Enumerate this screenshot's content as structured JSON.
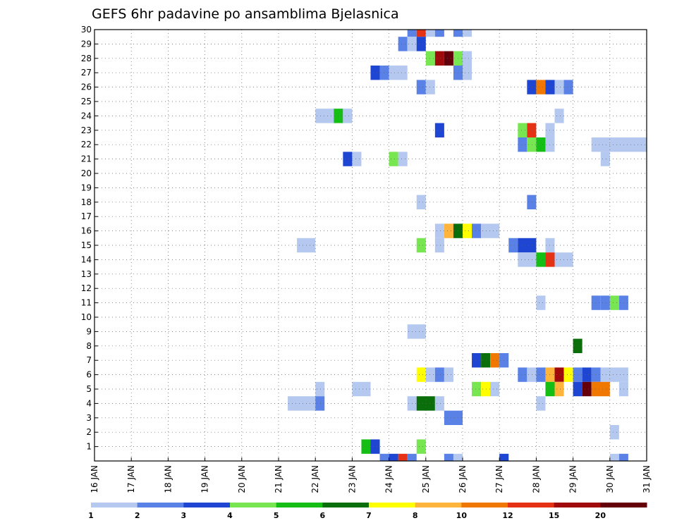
{
  "chart_data": {
    "type": "heatmap",
    "title": "GEFS 6hr padavine po ansamblima Bjelasnica",
    "x_tick_labels": [
      "16 JAN",
      "17 JAN",
      "18 JAN",
      "19 JAN",
      "20 JAN",
      "21 JAN",
      "22 JAN",
      "23 JAN",
      "24 JAN",
      "25 JAN",
      "26 JAN",
      "27 JAN",
      "28 JAN",
      "29 JAN",
      "30 JAN",
      "31 JAN"
    ],
    "x_range_days": [
      16,
      31
    ],
    "y_tick_labels": [
      "1",
      "2",
      "3",
      "4",
      "5",
      "6",
      "7",
      "8",
      "9",
      "10",
      "11",
      "12",
      "13",
      "14",
      "15",
      "16",
      "17",
      "18",
      "19",
      "20",
      "21",
      "22",
      "23",
      "24",
      "25",
      "26",
      "27",
      "28",
      "29",
      "30"
    ],
    "y_range": [
      0,
      30
    ],
    "grid": true,
    "legend": {
      "placement": "bottom",
      "thresholds": [
        "1",
        "2",
        "3",
        "4",
        "5",
        "6",
        "7",
        "8",
        "10",
        "12",
        "15",
        "20"
      ],
      "colors": [
        "#b4c8f0",
        "#5a82e6",
        "#1e46d2",
        "#78e650",
        "#14be14",
        "#0a6e0a",
        "#ffff00",
        "#ffb43c",
        "#f07800",
        "#e63214",
        "#a00a0a",
        "#64000a"
      ]
    },
    "cells": [
      {
        "member": 30,
        "x": [
          24.5,
          24.75
        ],
        "level": 2
      },
      {
        "member": 30,
        "x": [
          24.75,
          25.0
        ],
        "level": 10
      },
      {
        "member": 30,
        "x": [
          25.0,
          25.25
        ],
        "level": 1
      },
      {
        "member": 30,
        "x": [
          25.25,
          25.5
        ],
        "level": 2
      },
      {
        "member": 30,
        "x": [
          25.75,
          26.0
        ],
        "level": 2
      },
      {
        "member": 30,
        "x": [
          26.0,
          26.25
        ],
        "level": 1
      },
      {
        "member": 29,
        "x": [
          24.25,
          24.5
        ],
        "level": 2
      },
      {
        "member": 29,
        "x": [
          24.5,
          24.75
        ],
        "level": 1
      },
      {
        "member": 29,
        "x": [
          24.75,
          25.0
        ],
        "level": 3
      },
      {
        "member": 28,
        "x": [
          25.0,
          25.25
        ],
        "level": 4
      },
      {
        "member": 28,
        "x": [
          25.25,
          25.5
        ],
        "level": 11
      },
      {
        "member": 28,
        "x": [
          25.5,
          25.75
        ],
        "level": 12
      },
      {
        "member": 28,
        "x": [
          25.75,
          26.0
        ],
        "level": 4
      },
      {
        "member": 28,
        "x": [
          26.0,
          26.25
        ],
        "level": 1
      },
      {
        "member": 27,
        "x": [
          23.5,
          23.75
        ],
        "level": 3
      },
      {
        "member": 27,
        "x": [
          23.75,
          24.0
        ],
        "level": 2
      },
      {
        "member": 27,
        "x": [
          24.0,
          24.5
        ],
        "level": 1
      },
      {
        "member": 27,
        "x": [
          25.75,
          26.0
        ],
        "level": 2
      },
      {
        "member": 27,
        "x": [
          26.0,
          26.25
        ],
        "level": 1
      },
      {
        "member": 26,
        "x": [
          24.75,
          25.0
        ],
        "level": 2
      },
      {
        "member": 26,
        "x": [
          25.0,
          25.25
        ],
        "level": 1
      },
      {
        "member": 26,
        "x": [
          27.75,
          28.0
        ],
        "level": 3
      },
      {
        "member": 26,
        "x": [
          28.0,
          28.25
        ],
        "level": 9
      },
      {
        "member": 26,
        "x": [
          28.25,
          28.5
        ],
        "level": 3
      },
      {
        "member": 26,
        "x": [
          28.5,
          28.75
        ],
        "level": 1
      },
      {
        "member": 26,
        "x": [
          28.75,
          29.0
        ],
        "level": 2
      },
      {
        "member": 24,
        "x": [
          22.0,
          22.5
        ],
        "level": 1
      },
      {
        "member": 24,
        "x": [
          22.5,
          22.75
        ],
        "level": 5
      },
      {
        "member": 24,
        "x": [
          22.75,
          23.0
        ],
        "level": 1
      },
      {
        "member": 24,
        "x": [
          28.5,
          28.75
        ],
        "level": 1
      },
      {
        "member": 23,
        "x": [
          25.25,
          25.5
        ],
        "level": 3
      },
      {
        "member": 23,
        "x": [
          27.5,
          27.75
        ],
        "level": 4
      },
      {
        "member": 23,
        "x": [
          27.75,
          28.0
        ],
        "level": 10
      },
      {
        "member": 23,
        "x": [
          28.25,
          28.5
        ],
        "level": 1
      },
      {
        "member": 22,
        "x": [
          27.5,
          27.75
        ],
        "level": 2
      },
      {
        "member": 22,
        "x": [
          27.75,
          28.0
        ],
        "level": 4
      },
      {
        "member": 22,
        "x": [
          28.0,
          28.25
        ],
        "level": 5
      },
      {
        "member": 22,
        "x": [
          28.25,
          28.5
        ],
        "level": 1
      },
      {
        "member": 22,
        "x": [
          29.5,
          31.0
        ],
        "level": 1
      },
      {
        "member": 21,
        "x": [
          22.75,
          23.0
        ],
        "level": 3
      },
      {
        "member": 21,
        "x": [
          23.0,
          23.25
        ],
        "level": 1
      },
      {
        "member": 21,
        "x": [
          24.0,
          24.25
        ],
        "level": 4
      },
      {
        "member": 21,
        "x": [
          24.25,
          24.5
        ],
        "level": 1
      },
      {
        "member": 21,
        "x": [
          29.75,
          30.0
        ],
        "level": 1
      },
      {
        "member": 18,
        "x": [
          24.75,
          25.0
        ],
        "level": 1
      },
      {
        "member": 18,
        "x": [
          27.75,
          28.0
        ],
        "level": 2
      },
      {
        "member": 16,
        "x": [
          25.25,
          25.5
        ],
        "level": 1
      },
      {
        "member": 16,
        "x": [
          25.5,
          25.75
        ],
        "level": 8
      },
      {
        "member": 16,
        "x": [
          25.75,
          26.0
        ],
        "level": 6
      },
      {
        "member": 16,
        "x": [
          26.0,
          26.25
        ],
        "level": 7
      },
      {
        "member": 16,
        "x": [
          26.25,
          26.5
        ],
        "level": 2
      },
      {
        "member": 16,
        "x": [
          26.5,
          27.0
        ],
        "level": 1
      },
      {
        "member": 15,
        "x": [
          21.5,
          22.0
        ],
        "level": 1
      },
      {
        "member": 15,
        "x": [
          24.75,
          25.0
        ],
        "level": 4
      },
      {
        "member": 15,
        "x": [
          25.25,
          25.5
        ],
        "level": 1
      },
      {
        "member": 15,
        "x": [
          27.25,
          27.5
        ],
        "level": 2
      },
      {
        "member": 15,
        "x": [
          27.5,
          28.0
        ],
        "level": 3
      },
      {
        "member": 15,
        "x": [
          28.25,
          28.5
        ],
        "level": 1
      },
      {
        "member": 14,
        "x": [
          27.5,
          28.0
        ],
        "level": 1
      },
      {
        "member": 14,
        "x": [
          28.0,
          28.25
        ],
        "level": 5
      },
      {
        "member": 14,
        "x": [
          28.25,
          28.5
        ],
        "level": 10
      },
      {
        "member": 14,
        "x": [
          28.5,
          29.0
        ],
        "level": 1
      },
      {
        "member": 11,
        "x": [
          28.0,
          28.25
        ],
        "level": 1
      },
      {
        "member": 11,
        "x": [
          29.5,
          29.75
        ],
        "level": 2
      },
      {
        "member": 11,
        "x": [
          29.75,
          30.0
        ],
        "level": 2
      },
      {
        "member": 11,
        "x": [
          30.0,
          30.25
        ],
        "level": 4
      },
      {
        "member": 11,
        "x": [
          30.25,
          30.5
        ],
        "level": 2
      },
      {
        "member": 9,
        "x": [
          24.5,
          25.0
        ],
        "level": 1
      },
      {
        "member": 8,
        "x": [
          29.0,
          29.25
        ],
        "level": 6
      },
      {
        "member": 7,
        "x": [
          26.25,
          26.5
        ],
        "level": 3
      },
      {
        "member": 7,
        "x": [
          26.5,
          26.75
        ],
        "level": 6
      },
      {
        "member": 7,
        "x": [
          26.75,
          27.0
        ],
        "level": 9
      },
      {
        "member": 7,
        "x": [
          27.0,
          27.25
        ],
        "level": 2
      },
      {
        "member": 6,
        "x": [
          24.75,
          25.0
        ],
        "level": 7
      },
      {
        "member": 6,
        "x": [
          25.0,
          25.25
        ],
        "level": 1
      },
      {
        "member": 6,
        "x": [
          25.25,
          25.5
        ],
        "level": 2
      },
      {
        "member": 6,
        "x": [
          25.5,
          25.75
        ],
        "level": 1
      },
      {
        "member": 6,
        "x": [
          27.5,
          27.75
        ],
        "level": 2
      },
      {
        "member": 6,
        "x": [
          27.75,
          28.0
        ],
        "level": 1
      },
      {
        "member": 6,
        "x": [
          28.0,
          28.25
        ],
        "level": 2
      },
      {
        "member": 6,
        "x": [
          28.25,
          28.5
        ],
        "level": 8
      },
      {
        "member": 6,
        "x": [
          28.5,
          28.75
        ],
        "level": 11
      },
      {
        "member": 6,
        "x": [
          28.75,
          29.0
        ],
        "level": 7
      },
      {
        "member": 6,
        "x": [
          29.0,
          29.25
        ],
        "level": 2
      },
      {
        "member": 6,
        "x": [
          29.25,
          29.5
        ],
        "level": 3
      },
      {
        "member": 6,
        "x": [
          29.5,
          29.75
        ],
        "level": 2
      },
      {
        "member": 6,
        "x": [
          29.75,
          30.5
        ],
        "level": 1
      },
      {
        "member": 5,
        "x": [
          22.0,
          22.25
        ],
        "level": 1
      },
      {
        "member": 5,
        "x": [
          23.0,
          23.5
        ],
        "level": 1
      },
      {
        "member": 5,
        "x": [
          26.25,
          26.5
        ],
        "level": 4
      },
      {
        "member": 5,
        "x": [
          26.5,
          26.75
        ],
        "level": 7
      },
      {
        "member": 5,
        "x": [
          26.75,
          27.0
        ],
        "level": 1
      },
      {
        "member": 5,
        "x": [
          28.25,
          28.5
        ],
        "level": 5
      },
      {
        "member": 5,
        "x": [
          28.5,
          28.75
        ],
        "level": 8
      },
      {
        "member": 5,
        "x": [
          29.0,
          29.25
        ],
        "level": 3
      },
      {
        "member": 5,
        "x": [
          29.25,
          29.5
        ],
        "level": 12
      },
      {
        "member": 5,
        "x": [
          29.5,
          30.0
        ],
        "level": 9
      },
      {
        "member": 5,
        "x": [
          30.25,
          30.5
        ],
        "level": 1
      },
      {
        "member": 4,
        "x": [
          21.25,
          22.0
        ],
        "level": 1
      },
      {
        "member": 4,
        "x": [
          22.0,
          22.25
        ],
        "level": 2
      },
      {
        "member": 4,
        "x": [
          24.5,
          24.75
        ],
        "level": 1
      },
      {
        "member": 4,
        "x": [
          24.75,
          25.25
        ],
        "level": 6
      },
      {
        "member": 4,
        "x": [
          25.25,
          25.5
        ],
        "level": 1
      },
      {
        "member": 4,
        "x": [
          28.0,
          28.25
        ],
        "level": 1
      },
      {
        "member": 3,
        "x": [
          25.5,
          26.0
        ],
        "level": 2
      },
      {
        "member": 2,
        "x": [
          30.0,
          30.25
        ],
        "level": 1
      },
      {
        "member": 1,
        "x": [
          23.25,
          23.5
        ],
        "level": 5
      },
      {
        "member": 1,
        "x": [
          23.5,
          23.75
        ],
        "level": 3
      },
      {
        "member": 1,
        "x": [
          24.75,
          25.0
        ],
        "level": 4
      },
      {
        "member": 0,
        "x": [
          23.75,
          24.0
        ],
        "level": 2
      },
      {
        "member": 0,
        "x": [
          24.0,
          24.25
        ],
        "level": 3
      },
      {
        "member": 0,
        "x": [
          24.25,
          24.5
        ],
        "level": 10
      },
      {
        "member": 0,
        "x": [
          24.5,
          24.75
        ],
        "level": 2
      },
      {
        "member": 0,
        "x": [
          25.5,
          25.75
        ],
        "level": 2
      },
      {
        "member": 0,
        "x": [
          25.75,
          26.0
        ],
        "level": 1
      },
      {
        "member": 0,
        "x": [
          27.0,
          27.25
        ],
        "level": 3
      },
      {
        "member": 0,
        "x": [
          30.0,
          30.25
        ],
        "level": 1
      },
      {
        "member": 0,
        "x": [
          30.25,
          30.5
        ],
        "level": 2
      }
    ]
  }
}
